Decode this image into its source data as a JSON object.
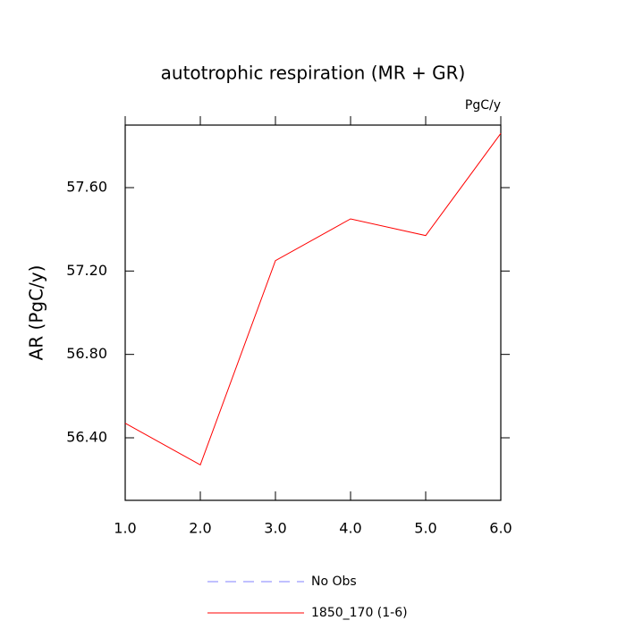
{
  "chart_data": {
    "type": "line",
    "title": "autotrophic respiration (MR + GR)",
    "subtitle": "PgC/y",
    "y_label": "AR  (PgC/y)",
    "x": [
      1,
      2,
      3,
      4,
      5,
      6
    ],
    "series": [
      {
        "name": "No Obs",
        "color": "#8080ff",
        "dashed": true,
        "values": [
          null,
          null,
          null,
          null,
          null,
          null
        ]
      },
      {
        "name": "1850_170 (1-6)",
        "color": "#ff0000",
        "dashed": false,
        "values": [
          56.47,
          56.27,
          57.25,
          57.45,
          57.37,
          57.86
        ]
      }
    ],
    "xlim": [
      1,
      6
    ],
    "xticks": [
      {
        "value": 1,
        "label": "1.0"
      },
      {
        "value": 2,
        "label": "2.0"
      },
      {
        "value": 3,
        "label": "3.0"
      },
      {
        "value": 4,
        "label": "4.0"
      },
      {
        "value": 5,
        "label": "5.0"
      },
      {
        "value": 6,
        "label": "6.0"
      }
    ],
    "ylim": [
      56.1,
      57.9
    ],
    "yticks": [
      {
        "value": 56.4,
        "label": "56.40"
      },
      {
        "value": 56.8,
        "label": "56.80"
      },
      {
        "value": 57.2,
        "label": "57.20"
      },
      {
        "value": 57.6,
        "label": "57.60"
      }
    ],
    "legend": "bottom"
  }
}
